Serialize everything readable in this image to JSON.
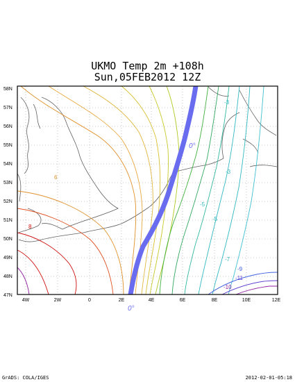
{
  "title": {
    "line1": "UKMO Temp 2m  +108h",
    "line2": "Sun,05FEB2012 12Z"
  },
  "lat_labels": [
    "58N",
    "57N",
    "56N",
    "55N",
    "54N",
    "53N",
    "52N",
    "51N",
    "50N",
    "49N",
    "48N",
    "47N"
  ],
  "lon_labels": [
    "4W",
    "2W",
    "0",
    "2E",
    "4E",
    "6E",
    "8E",
    "10E",
    "12E"
  ],
  "contour_labels": {
    "zero_deg_north": "0°",
    "zero_deg_south": "0°",
    "warm_8": "8",
    "warm_6": "6",
    "cold_minus_3_a": "-3",
    "cold_minus_3_b": "-3",
    "cold_minus_5_a": "-5",
    "cold_minus_5_b": "-5",
    "cold_minus_7": "-7",
    "cold_minus_9": "-9",
    "cold_minus_11": "-11",
    "cold_minus_10": "-10"
  },
  "colors": {
    "freezing_line": "#6a6cf0",
    "warm_red": "#d01010",
    "orange": "#e0902a",
    "yellow": "#d8c030",
    "green": "#40b040",
    "cyan": "#30b8c0",
    "purple": "#9020a0"
  },
  "footer": {
    "left": "GrADS: COLA/IGES",
    "right": "2012-02-01-05:18"
  }
}
